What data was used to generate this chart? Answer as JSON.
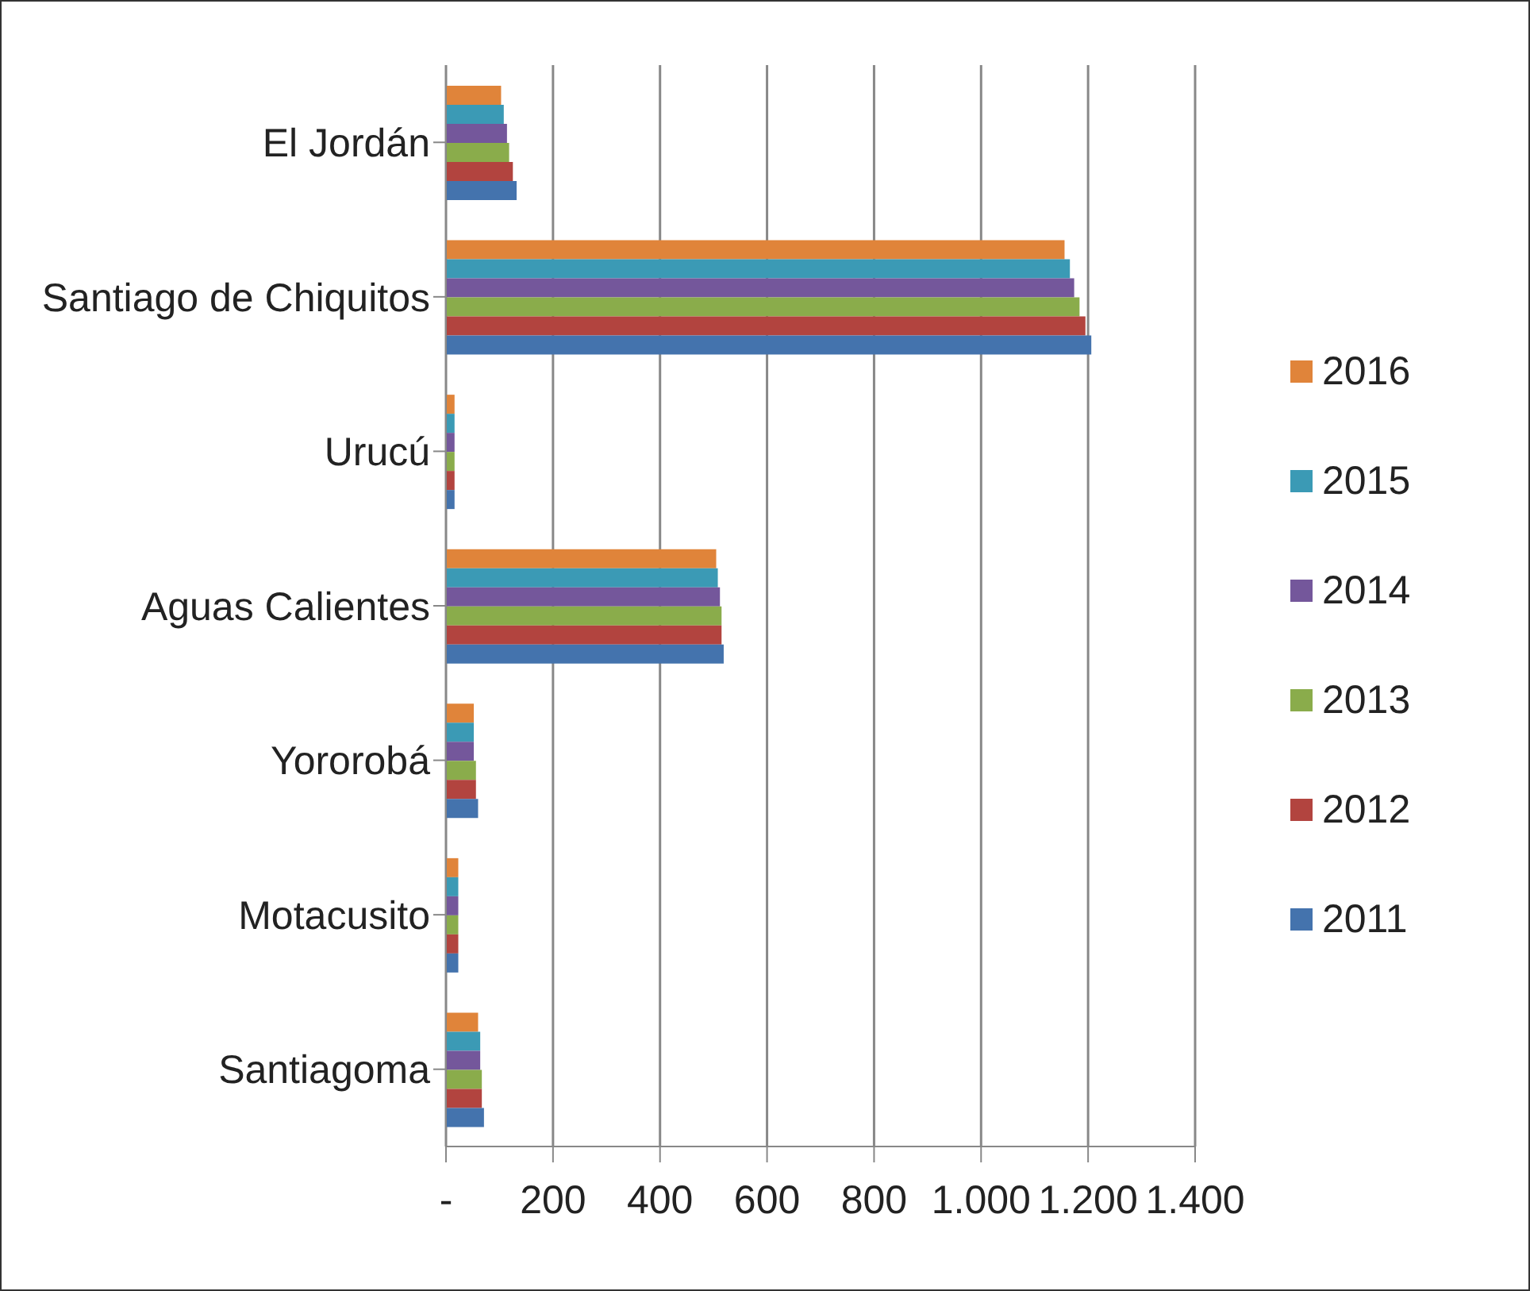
{
  "chart_data": {
    "type": "bar",
    "orientation": "horizontal",
    "categories": [
      "El Jordán",
      "Santiago de Chiquitos",
      "Urucú",
      "Aguas Calientes",
      "Yororobá",
      "Motacusito",
      "Santiagoma"
    ],
    "series": [
      {
        "name": "2016",
        "color": "#e0843a",
        "values": [
          103,
          1156,
          16,
          505,
          52,
          23,
          60
        ]
      },
      {
        "name": "2015",
        "color": "#3b9ab5",
        "values": [
          108,
          1166,
          16,
          508,
          52,
          23,
          64
        ]
      },
      {
        "name": "2014",
        "color": "#74579b",
        "values": [
          114,
          1174,
          16,
          512,
          52,
          23,
          64
        ]
      },
      {
        "name": "2013",
        "color": "#8aac4b",
        "values": [
          118,
          1184,
          16,
          515,
          56,
          23,
          67
        ]
      },
      {
        "name": "2012",
        "color": "#b2443f",
        "values": [
          125,
          1195,
          16,
          515,
          56,
          23,
          67
        ]
      },
      {
        "name": "2011",
        "color": "#4473ad",
        "values": [
          132,
          1206,
          16,
          519,
          60,
          23,
          71
        ]
      }
    ],
    "xlim": [
      0,
      1400
    ],
    "xticks": [
      {
        "value": 0,
        "label": "-"
      },
      200,
      400,
      600,
      800,
      {
        "value": 1000,
        "label": "1.000"
      },
      {
        "value": 1200,
        "label": "1.200"
      },
      {
        "value": 1400,
        "label": "1.400"
      }
    ],
    "grid": "x",
    "legend": "right"
  }
}
